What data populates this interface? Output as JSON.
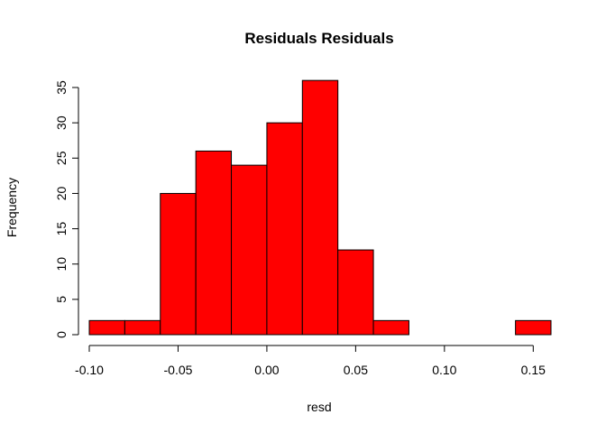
{
  "chart_data": {
    "type": "bar",
    "title": "Residuals Residuals",
    "xlabel": "resd",
    "ylabel": "Frequency",
    "bar_color": "#ff0000",
    "bins": [
      {
        "x0": -0.1,
        "x1": -0.08,
        "count": 2
      },
      {
        "x0": -0.08,
        "x1": -0.06,
        "count": 2
      },
      {
        "x0": -0.06,
        "x1": -0.04,
        "count": 20
      },
      {
        "x0": -0.04,
        "x1": -0.02,
        "count": 26
      },
      {
        "x0": -0.02,
        "x1": 0.0,
        "count": 24
      },
      {
        "x0": 0.0,
        "x1": 0.02,
        "count": 30
      },
      {
        "x0": 0.02,
        "x1": 0.04,
        "count": 36
      },
      {
        "x0": 0.04,
        "x1": 0.06,
        "count": 12
      },
      {
        "x0": 0.06,
        "x1": 0.08,
        "count": 2
      },
      {
        "x0": 0.08,
        "x1": 0.1,
        "count": 0
      },
      {
        "x0": 0.1,
        "x1": 0.12,
        "count": 0
      },
      {
        "x0": 0.12,
        "x1": 0.14,
        "count": 0
      },
      {
        "x0": 0.14,
        "x1": 0.16,
        "count": 2
      }
    ],
    "xlim": [
      -0.1,
      0.16
    ],
    "ylim": [
      0,
      35
    ],
    "x_ticks": [
      -0.1,
      -0.05,
      0.0,
      0.05,
      0.1,
      0.15
    ],
    "x_tick_labels": [
      "-0.10",
      "-0.05",
      "0.00",
      "0.05",
      "0.10",
      "0.15"
    ],
    "y_ticks": [
      0,
      5,
      10,
      15,
      20,
      25,
      30,
      35
    ],
    "y_tick_labels": [
      "0",
      "5",
      "10",
      "15",
      "20",
      "25",
      "30",
      "35"
    ],
    "grid": false,
    "legend": "none"
  }
}
